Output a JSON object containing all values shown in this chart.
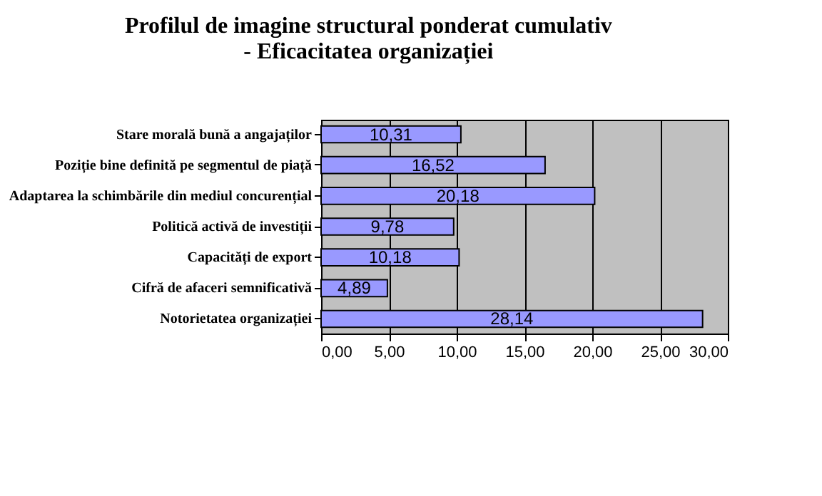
{
  "chart_data": {
    "type": "bar",
    "orientation": "horizontal",
    "title": "Profilul de imagine structural ponderat cumulativ\n- Eficacitatea organizației",
    "categories": [
      "Stare morală bună a angajaților",
      "Poziție bine definită pe segmentul de piață",
      "Adaptarea la schimbările din mediul concurențial",
      "Politică activă de investiții",
      "Capacități de export",
      "Cifră de afaceri semnificativă",
      "Notorietatea organizației"
    ],
    "values": [
      10.31,
      16.52,
      20.18,
      9.78,
      10.18,
      4.89,
      28.14
    ],
    "value_labels": [
      "10,31",
      "16,52",
      "20,18",
      "9,78",
      "10,18",
      "4,89",
      "28,14"
    ],
    "color": "#9999ff",
    "xlim": [
      0,
      30
    ],
    "xticks": [
      {
        "value": 0,
        "label": "0,00"
      },
      {
        "value": 5,
        "label": "5,00"
      },
      {
        "value": 10,
        "label": "10,00"
      },
      {
        "value": 15,
        "label": "15,00"
      },
      {
        "value": 20,
        "label": "20,00"
      },
      {
        "value": 25,
        "label": "25,00"
      },
      {
        "value": 30,
        "label": "30,00"
      }
    ],
    "grid": "x"
  }
}
